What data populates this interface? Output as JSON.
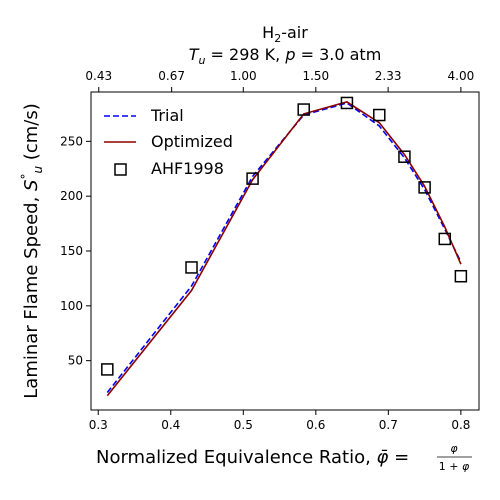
{
  "chart_data": {
    "type": "line",
    "title_line1": "H2-air",
    "title_line2": "Tu = 298 K, p = 3.0 atm",
    "xlabel": "Normalized Equivalence Ratio, φ̄ = φ/(1+φ)",
    "ylabel": "Laminar Flame Speed, Su° (cm/s)",
    "xlim": [
      0.29,
      0.825
    ],
    "ylim": [
      5,
      295
    ],
    "x_ticks": [
      0.3,
      0.4,
      0.5,
      0.6,
      0.7,
      0.8
    ],
    "x_tick_labels": [
      "0.3",
      "0.4",
      "0.5",
      "0.6",
      "0.7",
      "0.8"
    ],
    "y_ticks": [
      50,
      100,
      150,
      200,
      250
    ],
    "y_tick_labels": [
      "50",
      "100",
      "150",
      "200",
      "250"
    ],
    "top_x_ticks": [
      0.43,
      0.67,
      1.0,
      1.5,
      2.33,
      4.0
    ],
    "top_x_tick_labels": [
      "0.43",
      "0.67",
      "1.00",
      "1.50",
      "2.33",
      "4.00"
    ],
    "legend_position": "upper left",
    "series": [
      {
        "name": "Trial",
        "style": "dashed-line",
        "color": "#0000ff",
        "x": [
          0.3125,
          0.4286,
          0.5128,
          0.5833,
          0.6429,
          0.6875,
          0.7222,
          0.75,
          0.7778,
          0.8
        ],
        "y": [
          21,
          118,
          218,
          274,
          285,
          264,
          235,
          206,
          170,
          140
        ]
      },
      {
        "name": "Optimized",
        "style": "solid-line",
        "color": "#8b0000",
        "x": [
          0.3125,
          0.4286,
          0.5128,
          0.5833,
          0.6429,
          0.6875,
          0.7222,
          0.75,
          0.7778,
          0.8
        ],
        "y": [
          18,
          114,
          215,
          275,
          286,
          267,
          238,
          209,
          172,
          138
        ]
      },
      {
        "name": "AHF1998",
        "style": "open-square-marker",
        "color": "#000000",
        "x": [
          0.3125,
          0.4286,
          0.5128,
          0.5833,
          0.6429,
          0.6875,
          0.7222,
          0.75,
          0.7778,
          0.8
        ],
        "y": [
          42,
          135,
          216,
          279,
          285,
          274,
          236,
          208,
          161,
          127
        ]
      }
    ]
  }
}
